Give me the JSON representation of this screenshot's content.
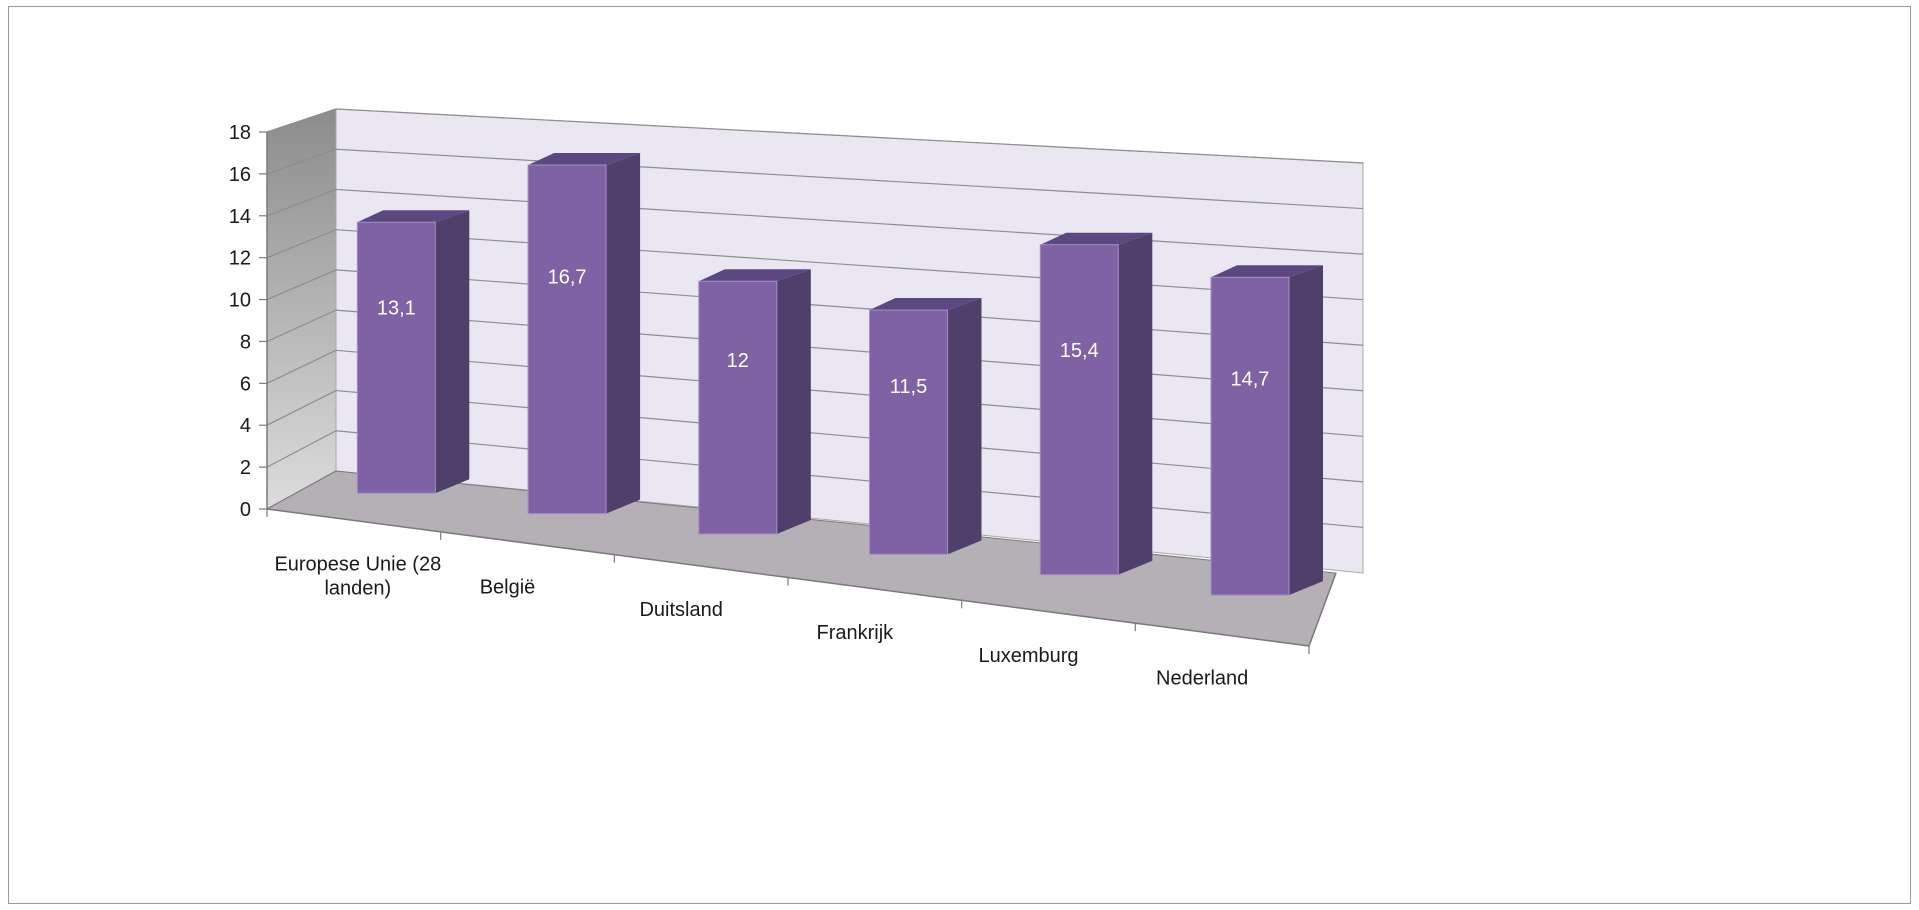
{
  "chart_data": {
    "type": "bar",
    "three_d": true,
    "categories": [
      "Europese Unie (28 landen)",
      "België",
      "Duitsland",
      "Frankrijk",
      "Luxemburg",
      "Nederland"
    ],
    "category_label_lines": [
      [
        "Europese Unie (28",
        "landen)"
      ],
      [
        "België"
      ],
      [
        "Duitsland"
      ],
      [
        "Frankrijk"
      ],
      [
        "Luxemburg"
      ],
      [
        "Nederland"
      ]
    ],
    "series": [
      {
        "values": [
          13.1,
          16.7,
          12,
          11.5,
          15.4,
          14.7
        ]
      }
    ],
    "data_labels": [
      "13,1",
      "16,7",
      "12",
      "11,5",
      "15,4",
      "14,7"
    ],
    "title": "",
    "xlabel": "",
    "ylabel": "",
    "ylim": [
      0,
      18
    ],
    "yticks": [
      0,
      2,
      4,
      6,
      8,
      10,
      12,
      14,
      16,
      18
    ],
    "grid": true,
    "legend": "none",
    "colors": {
      "bar_front": "#7f62a4",
      "bar_side": "#4f3f6b",
      "bar_top": "#5c4880",
      "bar_edge": "#a48ec8",
      "back_wall": "#eae7f2",
      "side_wall_top": "#8c8c8c",
      "side_wall_bottom": "#dcdcdc",
      "floor": "#b4b0b6",
      "gridline": "#8e8e8e",
      "axis": "#7a7a7a",
      "data_label": "#ffffff"
    }
  }
}
